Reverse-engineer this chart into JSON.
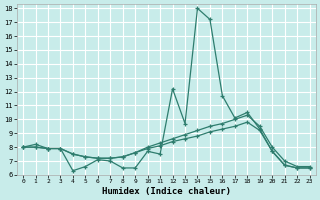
{
  "xlabel": "Humidex (Indice chaleur)",
  "background_color": "#c8ecea",
  "grid_color": "#ffffff",
  "line_color": "#2e7d6e",
  "x": [
    0,
    1,
    2,
    3,
    4,
    5,
    6,
    7,
    8,
    9,
    10,
    11,
    12,
    13,
    14,
    15,
    16,
    17,
    18,
    19,
    20,
    21,
    22,
    23
  ],
  "s1_y": [
    8.0,
    8.2,
    7.9,
    7.9,
    6.3,
    6.6,
    7.1,
    7.0,
    6.5,
    6.5,
    7.7,
    7.5,
    12.2,
    9.7,
    18.0,
    17.2,
    11.7,
    10.1,
    10.5,
    9.3,
    7.7,
    6.7,
    6.5,
    6.5
  ],
  "s2_y": [
    8.0,
    8.0,
    7.9,
    7.9,
    7.5,
    7.3,
    7.2,
    7.2,
    7.3,
    7.6,
    8.0,
    8.3,
    8.6,
    8.9,
    9.2,
    9.5,
    9.7,
    10.0,
    10.3,
    9.5,
    8.0,
    7.0,
    6.6,
    6.6
  ],
  "s3_y": [
    8.0,
    8.0,
    7.9,
    7.9,
    7.5,
    7.3,
    7.2,
    7.2,
    7.3,
    7.6,
    7.9,
    8.1,
    8.4,
    8.6,
    8.8,
    9.1,
    9.3,
    9.5,
    9.8,
    9.2,
    7.7,
    6.7,
    6.5,
    6.5
  ],
  "xlim": [
    -0.5,
    23.5
  ],
  "ylim": [
    6,
    18.3
  ],
  "yticks": [
    6,
    7,
    8,
    9,
    10,
    11,
    12,
    13,
    14,
    15,
    16,
    17,
    18
  ],
  "xticks": [
    0,
    1,
    2,
    3,
    4,
    5,
    6,
    7,
    8,
    9,
    10,
    11,
    12,
    13,
    14,
    15,
    16,
    17,
    18,
    19,
    20,
    21,
    22,
    23
  ]
}
